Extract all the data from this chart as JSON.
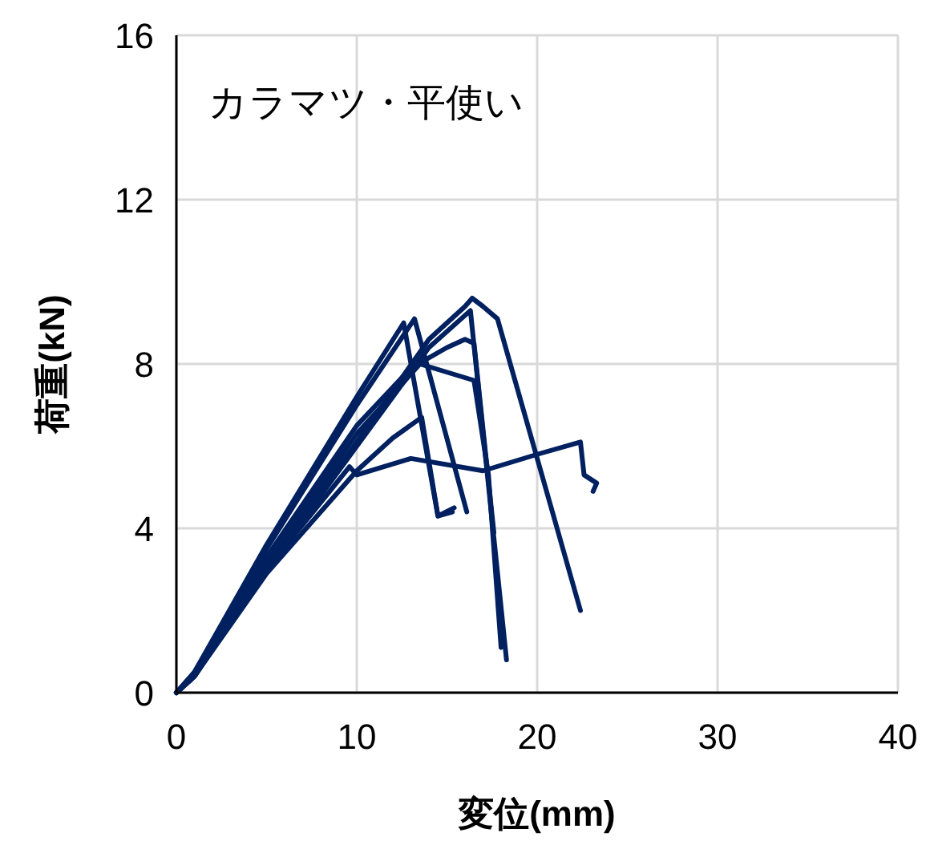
{
  "chart_data": {
    "type": "line",
    "title": "カラマツ・平使い",
    "xlabel": "変位(mm)",
    "ylabel": "荷重(kN)",
    "xlim": [
      0,
      40
    ],
    "ylim": [
      0,
      16
    ],
    "xticks": [
      0,
      10,
      20,
      30,
      40
    ],
    "yticks": [
      0,
      4,
      8,
      12,
      16
    ],
    "grid": true,
    "marker": "none",
    "line_style": "solid",
    "series": [
      {
        "color": "#002060",
        "x": [
          0,
          1,
          5,
          10,
          14,
          16,
          16.4,
          17,
          17.8,
          22.4
        ],
        "values": [
          0,
          0.4,
          3.1,
          6.1,
          8.6,
          9.4,
          9.6,
          9.4,
          9.1,
          2.0
        ]
      },
      {
        "color": "#002060",
        "x": [
          0,
          1,
          5,
          10,
          14,
          16.3,
          18.3
        ],
        "values": [
          0,
          0.4,
          3.0,
          6.0,
          8.4,
          9.3,
          0.8
        ]
      },
      {
        "color": "#002060",
        "x": [
          0,
          1,
          5,
          10,
          12.6,
          14.5,
          15.4
        ],
        "values": [
          0,
          0.5,
          3.6,
          7.2,
          9.0,
          4.3,
          4.5
        ]
      },
      {
        "color": "#002060",
        "x": [
          0,
          1,
          5,
          10,
          13.2,
          16.1
        ],
        "values": [
          0,
          0.5,
          3.5,
          7.0,
          9.1,
          4.4
        ]
      },
      {
        "color": "#002060",
        "x": [
          0,
          1,
          5,
          10,
          13,
          15,
          16,
          16.5,
          17.6
        ],
        "values": [
          0,
          0.4,
          3.3,
          6.5,
          7.9,
          8.4,
          8.6,
          8.5,
          3.9
        ]
      },
      {
        "color": "#002060",
        "x": [
          0,
          1,
          5,
          9.6,
          10,
          13,
          17,
          20,
          22.4,
          22.6,
          23.3,
          23.1
        ],
        "values": [
          0,
          0.4,
          3.0,
          5.5,
          5.3,
          5.7,
          5.4,
          5.8,
          6.1,
          5.3,
          5.1,
          4.9
        ]
      },
      {
        "color": "#002060",
        "x": [
          0,
          1,
          5,
          10,
          12,
          13.6,
          14.5,
          15.3
        ],
        "values": [
          0,
          0.4,
          2.9,
          5.4,
          6.2,
          6.7,
          4.3,
          4.4
        ]
      },
      {
        "color": "#002060",
        "x": [
          0,
          1,
          5,
          10,
          13.5,
          15,
          16.5,
          17.3,
          18
        ],
        "values": [
          0,
          0.4,
          3.2,
          6.3,
          8.0,
          7.8,
          7.6,
          5.3,
          1.1
        ]
      }
    ]
  }
}
